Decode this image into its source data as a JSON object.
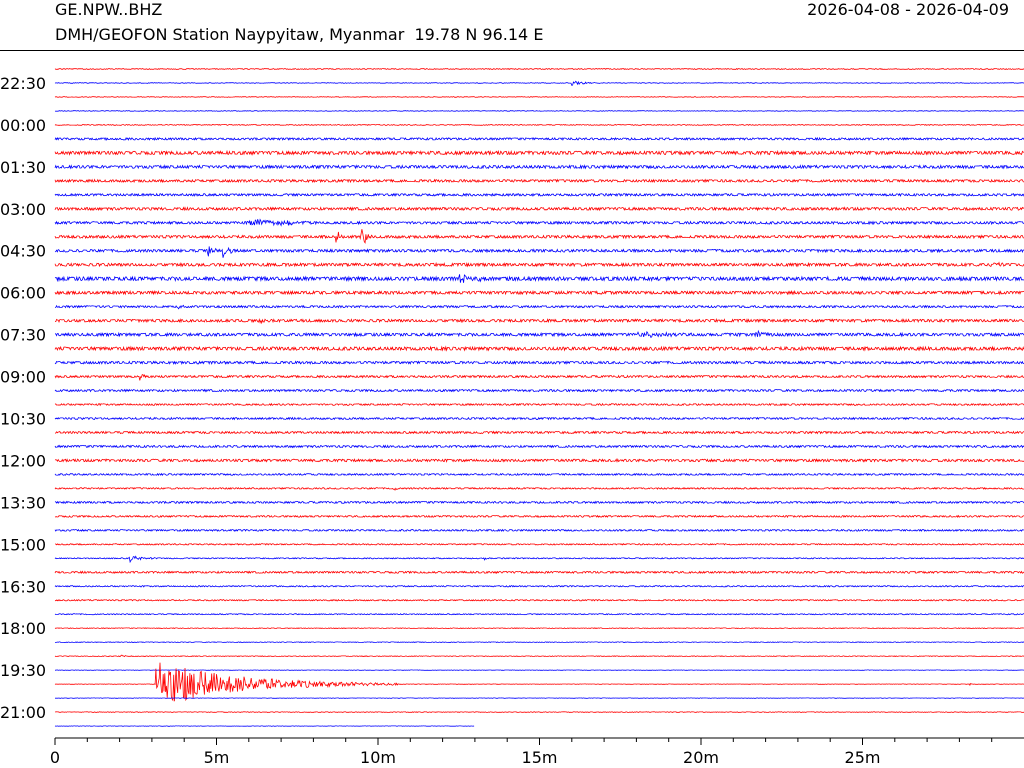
{
  "header": {
    "station_code": "GE.NPW..BHZ",
    "station_desc": "DMH/GEOFON Station Naypyitaw, Myanmar  19.78 N 96.14 E",
    "date_range": "2026-04-08 - 2026-04-09"
  },
  "chart_data": {
    "type": "line",
    "title": "GE.NPW..BHZ",
    "subtitle": "DMH/GEOFON Station Naypyitaw, Myanmar  19.78 N 96.14 E",
    "x_unit": "minutes",
    "xlim": [
      0,
      30
    ],
    "x_ticks": [
      {
        "value": 0,
        "label": "0"
      },
      {
        "value": 5,
        "label": "5m"
      },
      {
        "value": 10,
        "label": "10m"
      },
      {
        "value": 15,
        "label": "15m"
      },
      {
        "value": 20,
        "label": "20m"
      },
      {
        "value": 25,
        "label": "25m"
      }
    ],
    "trace_minutes": 30,
    "trace_count": 48,
    "y_ticks": [
      "22:30",
      "00:00",
      "01:30",
      "03:00",
      "04:30",
      "06:00",
      "07:30",
      "09:00",
      "10:30",
      "12:00",
      "13:30",
      "15:00",
      "16:30",
      "18:00",
      "19:30",
      "21:00"
    ],
    "y_tick_every_n_traces": 3,
    "y_tick_first_trace_index": 1,
    "colors": [
      "#ff0000",
      "#0000ff"
    ],
    "noise_amplitude_levels": [
      0.4,
      0.3,
      0.3,
      0.3,
      0.4,
      1.0,
      1.6,
      1.4,
      1.2,
      1.1,
      1.3,
      1.2,
      1.3,
      1.3,
      1.4,
      1.8,
      1.4,
      1.0,
      1.3,
      1.4,
      1.6,
      1.2,
      1.0,
      1.0,
      0.8,
      0.9,
      1.0,
      1.0,
      1.2,
      0.8,
      0.7,
      0.9,
      0.8,
      0.8,
      0.6,
      0.5,
      0.9,
      0.6,
      0.6,
      0.5,
      0.3,
      0.3,
      0.3,
      0.2,
      0.2,
      0.2,
      0.3,
      0.2
    ],
    "final_trace_end_minute": 13,
    "events": [
      {
        "trace": 1,
        "minute": 16.0,
        "amplitude": 3.0,
        "duration_minutes": 1.0
      },
      {
        "trace": 5,
        "minute": 28.3,
        "amplitude": 2.5,
        "duration_minutes": 0.5
      },
      {
        "trace": 11,
        "minute": 6.0,
        "amplitude": 4.0,
        "duration_minutes": 2.0
      },
      {
        "trace": 11,
        "minute": 7.0,
        "amplitude": 3.0,
        "duration_minutes": 1.5
      },
      {
        "trace": 12,
        "minute": 8.7,
        "amplitude": 9.0,
        "duration_minutes": 0.3
      },
      {
        "trace": 12,
        "minute": 9.5,
        "amplitude": 12.0,
        "duration_minutes": 0.4
      },
      {
        "trace": 13,
        "minute": 4.75,
        "amplitude": 10.0,
        "duration_minutes": 0.3
      },
      {
        "trace": 13,
        "minute": 5.2,
        "amplitude": 11.0,
        "duration_minutes": 0.4
      },
      {
        "trace": 14,
        "minute": 29.0,
        "amplitude": 3.0,
        "duration_minutes": 1.0
      },
      {
        "trace": 15,
        "minute": 12.5,
        "amplitude": 3.5,
        "duration_minutes": 1.5
      },
      {
        "trace": 17,
        "minute": 3.8,
        "amplitude": 2.5,
        "duration_minutes": 0.8
      },
      {
        "trace": 18,
        "minute": 6.3,
        "amplitude": 3.0,
        "duration_minutes": 0.6
      },
      {
        "trace": 19,
        "minute": 18.0,
        "amplitude": 3.0,
        "duration_minutes": 3.0
      },
      {
        "trace": 19,
        "minute": 21.7,
        "amplitude": 4.0,
        "duration_minutes": 0.5
      },
      {
        "trace": 22,
        "minute": 2.6,
        "amplitude": 4.0,
        "duration_minutes": 0.4
      },
      {
        "trace": 30,
        "minute": 10.5,
        "amplitude": 2.5,
        "duration_minutes": 0.3
      },
      {
        "trace": 35,
        "minute": 2.3,
        "amplitude": 4.0,
        "duration_minutes": 1.0
      },
      {
        "trace": 35,
        "minute": 13.3,
        "amplitude": 2.5,
        "duration_minutes": 0.15
      },
      {
        "trace": 42,
        "minute": 2.0,
        "amplitude": 2.5,
        "duration_minutes": 0.5
      },
      {
        "trace": 44,
        "minute": 3.12,
        "amplitude": 24.0,
        "duration_minutes": 7.5
      },
      {
        "trace": 44,
        "minute": 28.3,
        "amplitude": 3.0,
        "duration_minutes": 0.2
      }
    ]
  }
}
